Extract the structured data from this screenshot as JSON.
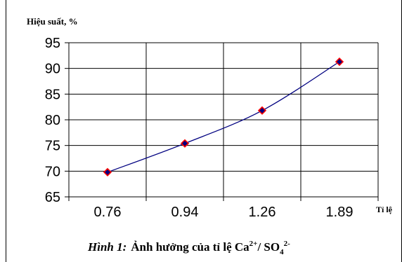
{
  "chart_data": {
    "type": "line",
    "ylabel": "Hiệu suất, %",
    "xlabel": "Tỉ lệ",
    "categories": [
      "0.76",
      "0.94",
      "1.26",
      "1.89"
    ],
    "series": [
      {
        "values": [
          69.8,
          75.4,
          81.8,
          91.3
        ]
      }
    ],
    "ylim": [
      65,
      95
    ],
    "yticks": [
      65,
      70,
      75,
      80,
      85,
      90,
      95
    ],
    "grid": true,
    "line_color": "#000080",
    "marker_color": "#000080",
    "marker_edge_color": "#FF0000",
    "marker": "diamond"
  },
  "caption": {
    "prefix": "Hình 1:",
    "text": "Ảnh hưởng của tỉ lệ Ca",
    "sup1": "2+",
    "mid": "/ SO",
    "sub": "4",
    "sup2": "2-"
  }
}
